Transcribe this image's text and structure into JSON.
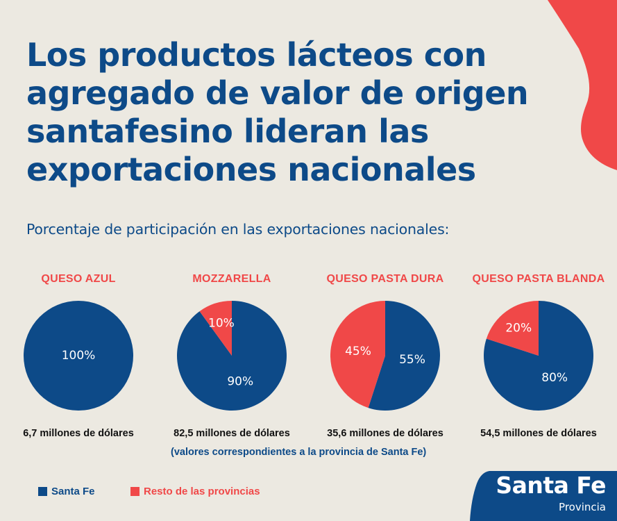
{
  "title": "Los productos lácteos con agregado de valor de origen santafesino lideran las exportaciones nacionales",
  "subtitle": "Porcentaje de participación en las exportaciones nacionales:",
  "note": "(valores correspondientes a la provincia de Santa Fe)",
  "colors": {
    "santa_fe": "#0d4a88",
    "resto": "#f04848",
    "background": "#ece9e1"
  },
  "logo": {
    "name": "Santa Fe",
    "sub": "Provincia"
  },
  "chart_data": {
    "type": "pie",
    "legend": [
      {
        "label": "Santa Fe",
        "color": "#0d4a88"
      },
      {
        "label": "Resto de las provincias",
        "color": "#f04848"
      }
    ],
    "legend_position": "bottom-left",
    "charts": [
      {
        "title": "QUESO AZUL",
        "amount": "6,7 millones de dólares",
        "slices": [
          {
            "series": "Santa Fe",
            "value": 100,
            "label": "100%"
          }
        ]
      },
      {
        "title": "MOZZARELLA",
        "amount": "82,5 millones de dólares",
        "slices": [
          {
            "series": "Santa Fe",
            "value": 90,
            "label": "90%"
          },
          {
            "series": "Resto de las provincias",
            "value": 10,
            "label": "10%"
          }
        ]
      },
      {
        "title": "QUESO PASTA DURA",
        "amount": "35,6 millones de dólares",
        "slices": [
          {
            "series": "Santa Fe",
            "value": 55,
            "label": "55%"
          },
          {
            "series": "Resto de las provincias",
            "value": 45,
            "label": "45%"
          }
        ]
      },
      {
        "title": "QUESO PASTA BLANDA",
        "amount": "54,5 millones de dólares",
        "slices": [
          {
            "series": "Santa Fe",
            "value": 80,
            "label": "80%"
          },
          {
            "series": "Resto de las provincias",
            "value": 20,
            "label": "20%"
          }
        ]
      }
    ]
  }
}
